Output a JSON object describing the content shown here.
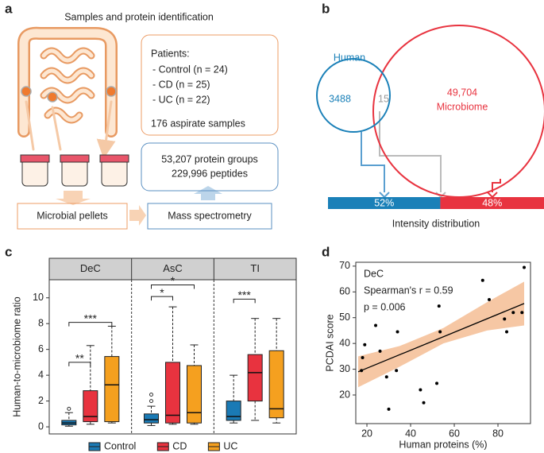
{
  "diagram": {
    "panel": "a",
    "title": "Samples and protein identification",
    "patients": {
      "heading": "Patients:",
      "lines": [
        "- Control (n = 24)",
        "- CD (n = 25)",
        "- UC (n = 22)"
      ],
      "samples": "176 aspirate samples"
    },
    "identification": [
      "53,207 protein groups",
      "229,996 peptides"
    ],
    "steps": [
      "Microbial pellets",
      "Mass spectrometry"
    ]
  },
  "chart_data": [
    {
      "type": "venn",
      "panel": "b",
      "sets": [
        {
          "name": "Human",
          "value": 3488,
          "color": "#1a80b8"
        },
        {
          "name": "Microbiome",
          "value": 49704,
          "value_label": "49,704",
          "color": "#e8333f"
        }
      ],
      "overlap": 15,
      "distribution": {
        "label": "Intensity distribution",
        "values": [
          52,
          48
        ],
        "value_labels": [
          "52%",
          "48%"
        ],
        "colors": [
          "#1a80b8",
          "#e8333f"
        ]
      }
    },
    {
      "type": "box",
      "panel": "c",
      "y_label": "Human-to-microbiome ratio",
      "categories": [
        "DeC",
        "AsC",
        "TI"
      ],
      "ylim": [
        -0.55,
        11.4
      ],
      "yticks": [
        0,
        2,
        4,
        6,
        8,
        10
      ],
      "series": [
        {
          "name": "Control",
          "color": "#1a7ab5",
          "boxes": [
            {
              "whislo": 0.05,
              "q1": 0.15,
              "med": 0.3,
              "q3": 0.5,
              "whishi": 1.1,
              "fliers": [
                1.4
              ]
            },
            {
              "whislo": 0.1,
              "q1": 0.3,
              "med": 0.55,
              "q3": 1.0,
              "whishi": 1.6,
              "fliers": [
                2.0,
                2.5
              ]
            },
            {
              "whislo": 0.3,
              "q1": 0.5,
              "med": 0.8,
              "q3": 2.0,
              "whishi": 4.0,
              "fliers": []
            }
          ]
        },
        {
          "name": "CD",
          "color": "#e8333f",
          "boxes": [
            {
              "whislo": 0.2,
              "q1": 0.4,
              "med": 0.8,
              "q3": 2.8,
              "whishi": 6.3,
              "fliers": []
            },
            {
              "whislo": 0.2,
              "q1": 0.3,
              "med": 0.9,
              "q3": 5.0,
              "whishi": 9.3,
              "fliers": []
            },
            {
              "whislo": 0.5,
              "q1": 2.0,
              "med": 4.2,
              "q3": 5.6,
              "whishi": 8.4,
              "fliers": []
            }
          ]
        },
        {
          "name": "UC",
          "color": "#f5a01f",
          "boxes": [
            {
              "whislo": 0.3,
              "q1": 0.4,
              "med": 3.25,
              "q3": 5.45,
              "whishi": 7.8,
              "fliers": []
            },
            {
              "whislo": 0.2,
              "q1": 0.3,
              "med": 1.1,
              "q3": 4.75,
              "whishi": 6.35,
              "fliers": []
            },
            {
              "whislo": 0.3,
              "q1": 0.7,
              "med": 1.4,
              "q3": 5.9,
              "whishi": 8.4,
              "fliers": []
            }
          ]
        }
      ],
      "significance": [
        {
          "facet": 0,
          "from": 0,
          "to": 1,
          "y": 5.0,
          "label": "**"
        },
        {
          "facet": 0,
          "from": 0,
          "to": 2,
          "y": 8.1,
          "label": "***"
        },
        {
          "facet": 1,
          "from": 0,
          "to": 1,
          "y": 10.1,
          "label": "*"
        },
        {
          "facet": 1,
          "from": 0,
          "to": 2,
          "y": 11.0,
          "label": "*"
        },
        {
          "facet": 2,
          "from": 0,
          "to": 1,
          "y": 9.9,
          "label": "***"
        }
      ]
    },
    {
      "type": "scatter",
      "panel": "d",
      "x_label": "Human proteins (%)",
      "y_label": "PCDAI score",
      "annotations": [
        "DeC",
        "Spearman's r = 0.59",
        "p = 0.006"
      ],
      "xlim": [
        14.9,
        94.9
      ],
      "ylim": [
        8.9,
        71.5
      ],
      "xticks": [
        20,
        40,
        60,
        80
      ],
      "yticks": [
        20,
        30,
        40,
        50,
        60,
        70
      ],
      "x": [
        17.5,
        18,
        19,
        24,
        26,
        29,
        30,
        33.5,
        34,
        44.5,
        46,
        52,
        53,
        53.5,
        73,
        76,
        83,
        84,
        87,
        92,
        91
      ],
      "y": [
        29.5,
        34.5,
        39.5,
        47,
        37,
        27,
        14.5,
        29.5,
        44.5,
        22,
        17,
        24.5,
        54.5,
        44.5,
        64.5,
        57,
        49.5,
        44.5,
        52,
        69.5,
        52
      ],
      "color": "#000000",
      "fit": {
        "x": [
          16,
          92
        ],
        "y": [
          29,
          55.5
        ],
        "color": "#000000"
      },
      "band": {
        "x": [
          16,
          35,
          55,
          75,
          92
        ],
        "lower": [
          23,
          31,
          40,
          45,
          47
        ],
        "upper": [
          35,
          39,
          46,
          56,
          64
        ],
        "color": "#f6c7a4"
      }
    }
  ]
}
